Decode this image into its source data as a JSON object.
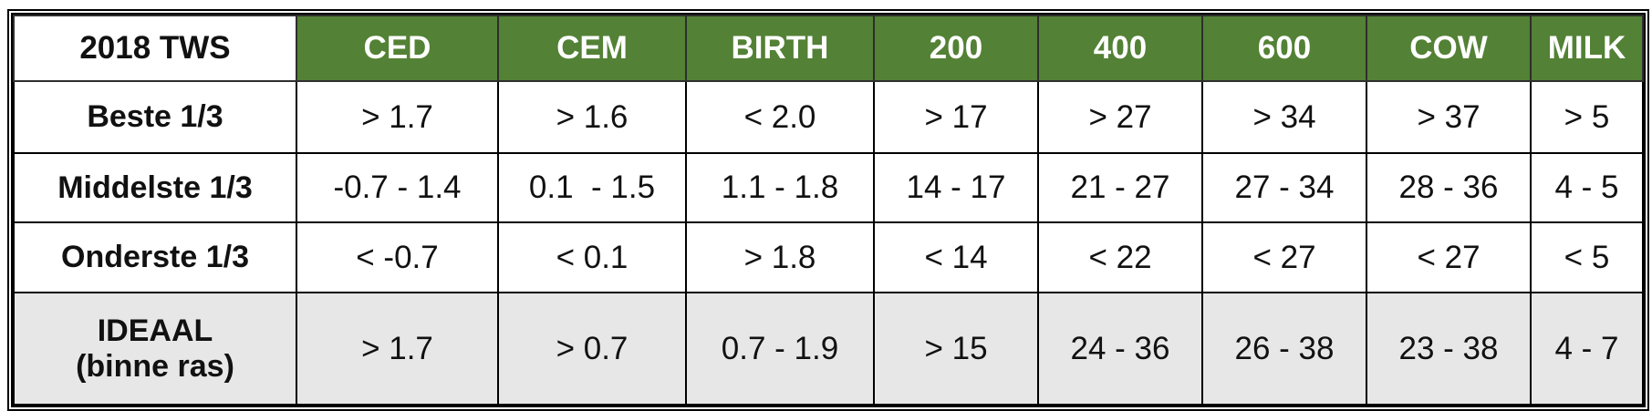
{
  "table": {
    "header": [
      "2018 TWS",
      "CED",
      "CEM",
      "BIRTH",
      "200",
      "400",
      "600",
      "COW",
      "MILK"
    ],
    "rows": [
      [
        "Beste 1/3",
        "> 1.7",
        "> 1.6",
        "< 2.0",
        "> 17",
        "> 27",
        "> 34",
        "> 37",
        "> 5"
      ],
      [
        "Middelste 1/3",
        "-0.7 - 1.4",
        "0.1  - 1.5",
        "1.1 - 1.8",
        "14 - 17",
        "21 - 27",
        "27 - 34",
        "28 - 36",
        "4 - 5"
      ],
      [
        "Onderste 1/3",
        "< -0.7",
        "< 0.1",
        "> 1.8",
        "< 14",
        "< 22",
        "< 27",
        "< 27",
        "< 5"
      ],
      [
        "IDEAAL\n(binne ras)",
        "> 1.7",
        "> 0.7",
        "0.7 - 1.9",
        "> 15",
        "24 - 36",
        "26 - 38",
        "23 - 38",
        "4 - 7"
      ]
    ]
  }
}
